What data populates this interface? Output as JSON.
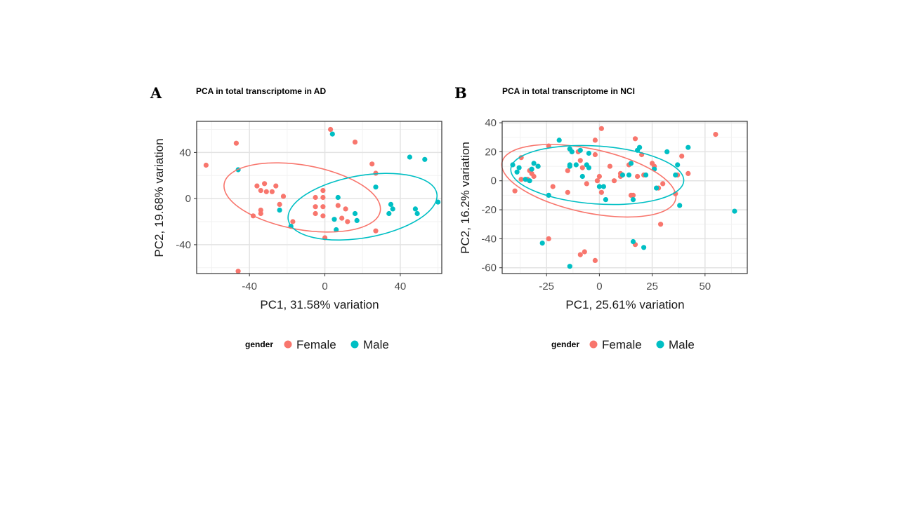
{
  "colors": {
    "Female": "#F8766D",
    "Male": "#00BFC4"
  },
  "chart_data": [
    {
      "type": "scatter",
      "panel": "A",
      "title": "PCA in total transcriptome in AD",
      "xlabel": "PC1, 31.58% variation",
      "ylabel": "PC2, 19.68% variation",
      "xlim": [
        -68,
        62
      ],
      "ylim": [
        -65,
        67
      ],
      "xticks": [
        -40,
        0,
        40
      ],
      "yticks": [
        -40,
        0,
        40
      ],
      "grid": true,
      "legend_title": "gender",
      "legend_position": "bottom",
      "ellipses": [
        {
          "group": "Female",
          "cx": -12,
          "cy": 1,
          "rx": 42,
          "ry": 28,
          "angle": -10
        },
        {
          "group": "Male",
          "cx": 20,
          "cy": -7,
          "rx": 40,
          "ry": 27,
          "angle": 10
        }
      ],
      "series": [
        {
          "name": "Female",
          "points": [
            [
              -63,
              29
            ],
            [
              -47,
              48
            ],
            [
              -46,
              -63
            ],
            [
              3,
              60
            ],
            [
              16,
              49
            ],
            [
              -36,
              11
            ],
            [
              -32,
              13
            ],
            [
              -34,
              7
            ],
            [
              -31,
              6
            ],
            [
              -28,
              6
            ],
            [
              -26,
              11
            ],
            [
              -22,
              2
            ],
            [
              -38,
              -15
            ],
            [
              -34,
              -10
            ],
            [
              -34,
              -13
            ],
            [
              -24,
              -5
            ],
            [
              -17,
              -20
            ],
            [
              -1,
              7
            ],
            [
              -1,
              1
            ],
            [
              -5,
              1
            ],
            [
              -5,
              -7
            ],
            [
              -1,
              -7
            ],
            [
              -5,
              -13
            ],
            [
              -1,
              -15
            ],
            [
              0,
              -34
            ],
            [
              7,
              -6
            ],
            [
              11,
              -9
            ],
            [
              12,
              -20
            ],
            [
              9,
              -17
            ],
            [
              25,
              30
            ],
            [
              27,
              22
            ],
            [
              27,
              -28
            ]
          ]
        },
        {
          "name": "Male",
          "points": [
            [
              -46,
              25
            ],
            [
              4,
              56
            ],
            [
              -24,
              -10
            ],
            [
              -18,
              -24
            ],
            [
              7,
              1
            ],
            [
              5,
              -18
            ],
            [
              6,
              -27
            ],
            [
              16,
              -13
            ],
            [
              17,
              -19
            ],
            [
              27,
              10
            ],
            [
              35,
              -5
            ],
            [
              34,
              -13
            ],
            [
              36,
              -9
            ],
            [
              45,
              36
            ],
            [
              53,
              34
            ],
            [
              48,
              -9
            ],
            [
              49,
              -13
            ],
            [
              60,
              -3
            ]
          ]
        }
      ]
    },
    {
      "type": "scatter",
      "panel": "B",
      "title": "PCA in total transcriptome in NCI",
      "xlabel": "PC1, 25.61% variation",
      "ylabel": "PC2, 16.2% variation",
      "xlim": [
        -46,
        70
      ],
      "ylim": [
        -64,
        41
      ],
      "xticks": [
        -25,
        0,
        25,
        50
      ],
      "yticks": [
        -60,
        -40,
        -20,
        0,
        20,
        40
      ],
      "grid": true,
      "legend_title": "gender",
      "legend_position": "bottom",
      "ellipses": [
        {
          "group": "Female",
          "cx": -5,
          "cy": 0,
          "rx": 42,
          "ry": 22,
          "angle": -12
        },
        {
          "group": "Male",
          "cx": -1,
          "cy": 4,
          "rx": 41,
          "ry": 20,
          "angle": -4
        }
      ],
      "series": [
        {
          "name": "Female",
          "points": [
            [
              -40,
              -7
            ],
            [
              -37,
              1
            ],
            [
              -37,
              16
            ],
            [
              -34,
              1
            ],
            [
              -33,
              7
            ],
            [
              -32,
              5
            ],
            [
              -31,
              3
            ],
            [
              -29,
              10
            ],
            [
              -24,
              24
            ],
            [
              -22,
              -4
            ],
            [
              -15,
              -8
            ],
            [
              -15,
              7
            ],
            [
              -14,
              22
            ],
            [
              -10,
              20
            ],
            [
              -9,
              14
            ],
            [
              -8,
              9
            ],
            [
              -6,
              -2
            ],
            [
              -2,
              18
            ],
            [
              -2,
              28
            ],
            [
              -1,
              0
            ],
            [
              0,
              3
            ],
            [
              1,
              -8
            ],
            [
              1,
              36
            ],
            [
              5,
              10
            ],
            [
              7,
              0
            ],
            [
              10,
              3
            ],
            [
              10,
              5
            ],
            [
              14,
              11
            ],
            [
              15,
              -10
            ],
            [
              16,
              -10
            ],
            [
              17,
              29
            ],
            [
              18,
              3
            ],
            [
              20,
              18
            ],
            [
              21,
              4
            ],
            [
              25,
              12
            ],
            [
              26,
              10
            ],
            [
              28,
              -5
            ],
            [
              30,
              -2
            ],
            [
              36,
              -9
            ],
            [
              37,
              4
            ],
            [
              39,
              17
            ],
            [
              42,
              5
            ],
            [
              55,
              32
            ],
            [
              17,
              -44
            ],
            [
              -24,
              -40
            ],
            [
              -9,
              -51
            ],
            [
              -7,
              -49
            ],
            [
              -2,
              -55
            ],
            [
              29,
              -30
            ]
          ]
        },
        {
          "name": "Male",
          "points": [
            [
              -41,
              11
            ],
            [
              -39,
              6
            ],
            [
              -38,
              9
            ],
            [
              -35,
              1
            ],
            [
              -33,
              0
            ],
            [
              -32,
              8
            ],
            [
              -31,
              12
            ],
            [
              -29,
              10
            ],
            [
              -24,
              -10
            ],
            [
              -19,
              28
            ],
            [
              -14,
              22
            ],
            [
              -13,
              20
            ],
            [
              -14,
              11
            ],
            [
              -14,
              10
            ],
            [
              -11,
              11
            ],
            [
              -9,
              21
            ],
            [
              -8,
              3
            ],
            [
              -6,
              11
            ],
            [
              -5,
              19
            ],
            [
              -5,
              9
            ],
            [
              0,
              -4
            ],
            [
              2,
              -4
            ],
            [
              3,
              -13
            ],
            [
              11,
              4
            ],
            [
              14,
              4
            ],
            [
              15,
              12
            ],
            [
              16,
              -13
            ],
            [
              18,
              21
            ],
            [
              19,
              23
            ],
            [
              22,
              4
            ],
            [
              26,
              8
            ],
            [
              27,
              -5
            ],
            [
              32,
              20
            ],
            [
              36,
              4
            ],
            [
              37,
              11
            ],
            [
              38,
              -17
            ],
            [
              42,
              23
            ],
            [
              64,
              -21
            ],
            [
              16,
              -42
            ],
            [
              21,
              -46
            ],
            [
              -27,
              -43
            ],
            [
              -14,
              -59
            ]
          ]
        }
      ]
    }
  ],
  "legend_items": [
    "Female",
    "Male"
  ]
}
